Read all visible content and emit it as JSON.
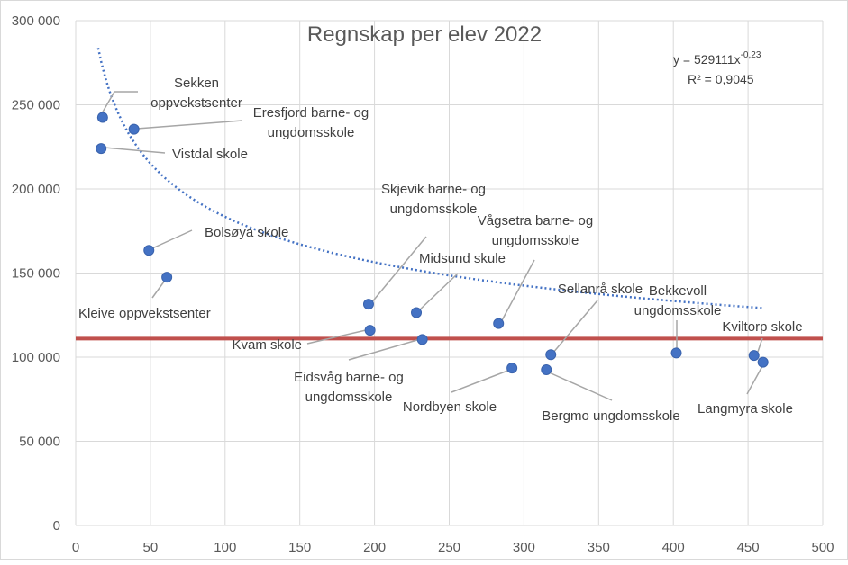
{
  "chart_data": {
    "type": "scatter",
    "title": "Regnskap per elev 2022",
    "xlabel": "",
    "ylabel": "",
    "xlim": [
      0,
      500
    ],
    "ylim": [
      0,
      300000
    ],
    "x_ticks": [
      "0",
      "50",
      "100",
      "150",
      "200",
      "250",
      "300",
      "350",
      "400",
      "450",
      "500"
    ],
    "y_ticks": [
      "0",
      "50 000",
      "100 000",
      "150 000",
      "200 000",
      "250 000",
      "300 000"
    ],
    "grid": true,
    "colors": {
      "points": "#4472c4",
      "trendline": "#4472c4",
      "reference_line": "#c0504d",
      "grid": "#d9d9d9",
      "leader": "#a6a6a6",
      "text": "#404040"
    },
    "reference_line": {
      "y": 111000
    },
    "trendline": {
      "type": "power",
      "a": 529111,
      "b": -0.23,
      "equation_text": "y = 529111x",
      "equation_exponent": "-0,23",
      "r2_text": "R² = 0,9045"
    },
    "points": [
      {
        "label_lines": [
          "Sekken",
          "oppvekstsenter"
        ],
        "x": 18,
        "y": 242500
      },
      {
        "label_lines": [
          "Eresfjord barne- og",
          "ungdomsskole"
        ],
        "x": 39,
        "y": 235500
      },
      {
        "label_lines": [
          "Vistdal skole"
        ],
        "x": 17,
        "y": 224000
      },
      {
        "label_lines": [
          "Bolsøya skole"
        ],
        "x": 49,
        "y": 163500
      },
      {
        "label_lines": [
          "Kleive oppvekstsenter"
        ],
        "x": 61,
        "y": 147500
      },
      {
        "label_lines": [
          "Skjevik barne- og",
          "ungdomsskole"
        ],
        "x": 196,
        "y": 131500
      },
      {
        "label_lines": [
          "Midsund skule"
        ],
        "x": 228,
        "y": 126500
      },
      {
        "label_lines": [
          "Vågsetra barne- og",
          "ungdomsskole"
        ],
        "x": 283,
        "y": 120000
      },
      {
        "label_lines": [
          "Kvam skole"
        ],
        "x": 197,
        "y": 116000
      },
      {
        "label_lines": [
          "Eidsvåg barne- og",
          "ungdomsskole"
        ],
        "x": 232,
        "y": 110500
      },
      {
        "label_lines": [
          "Sellanrå skole"
        ],
        "x": 318,
        "y": 101500
      },
      {
        "label_lines": [
          "Bekkevoll",
          "ungdomsskole"
        ],
        "x": 402,
        "y": 102500
      },
      {
        "label_lines": [
          "Kviltorp skole"
        ],
        "x": 454,
        "y": 101000
      },
      {
        "label_lines": [
          "Langmyra skole"
        ],
        "x": 460,
        "y": 97000
      },
      {
        "label_lines": [
          "Nordbyen skole"
        ],
        "x": 292,
        "y": 93500
      },
      {
        "label_lines": [
          "Bergmo ungdomsskole"
        ],
        "x": 315,
        "y": 92500
      }
    ]
  }
}
